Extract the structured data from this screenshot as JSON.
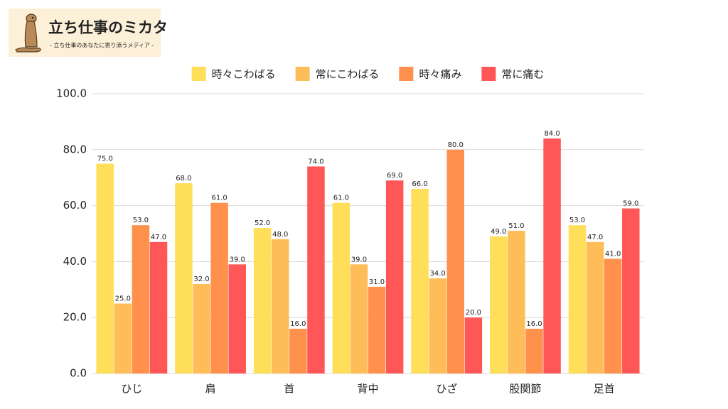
{
  "logo": {
    "title": "立ち仕事のミカタ",
    "tagline": "- 立ち仕事のあなたに寄り添うメディア -"
  },
  "chart_data": {
    "type": "bar",
    "categories": [
      "ひじ",
      "肩",
      "首",
      "背中",
      "ひざ",
      "股関節",
      "足首"
    ],
    "series": [
      {
        "name": "時々こわばる",
        "color": "#ffde59",
        "values": [
          75,
          68,
          52,
          61,
          66,
          49,
          53
        ],
        "value_labels": [
          "75.0",
          "68.0",
          "52.0",
          "61.0",
          "66.0",
          "49.0",
          "53.0"
        ]
      },
      {
        "name": "常にこわばる",
        "color": "#ffbd59",
        "values": [
          25,
          32,
          48,
          39,
          34,
          51,
          47
        ],
        "value_labels": [
          "25.0",
          "32.0",
          "48.0",
          "39.0",
          "34.0",
          "51.0",
          "47.0"
        ]
      },
      {
        "name": "時々痛み",
        "color": "#ff914d",
        "values": [
          53,
          61,
          16,
          31,
          80,
          16,
          41
        ],
        "value_labels": [
          "53.0",
          "61.0",
          "16.0",
          "31.0",
          "80.0",
          "16.0",
          "41.0"
        ]
      },
      {
        "name": "常に痛む",
        "color": "#ff5757",
        "values": [
          47,
          39,
          74,
          69,
          20,
          84,
          59
        ],
        "value_labels": [
          "47.0",
          "39.0",
          "74.0",
          "69.0",
          "20.0",
          "84.0",
          "59.0"
        ]
      }
    ],
    "ylim": [
      0,
      100
    ],
    "yticks": [
      {
        "value": 0,
        "label": "0.0"
      },
      {
        "value": 20,
        "label": "20.0"
      },
      {
        "value": 40,
        "label": "40.0"
      },
      {
        "value": 60,
        "label": "60.0"
      },
      {
        "value": 80,
        "label": "80.0"
      },
      {
        "value": 100,
        "label": "100.0"
      }
    ],
    "grid": true,
    "legend": "top"
  }
}
